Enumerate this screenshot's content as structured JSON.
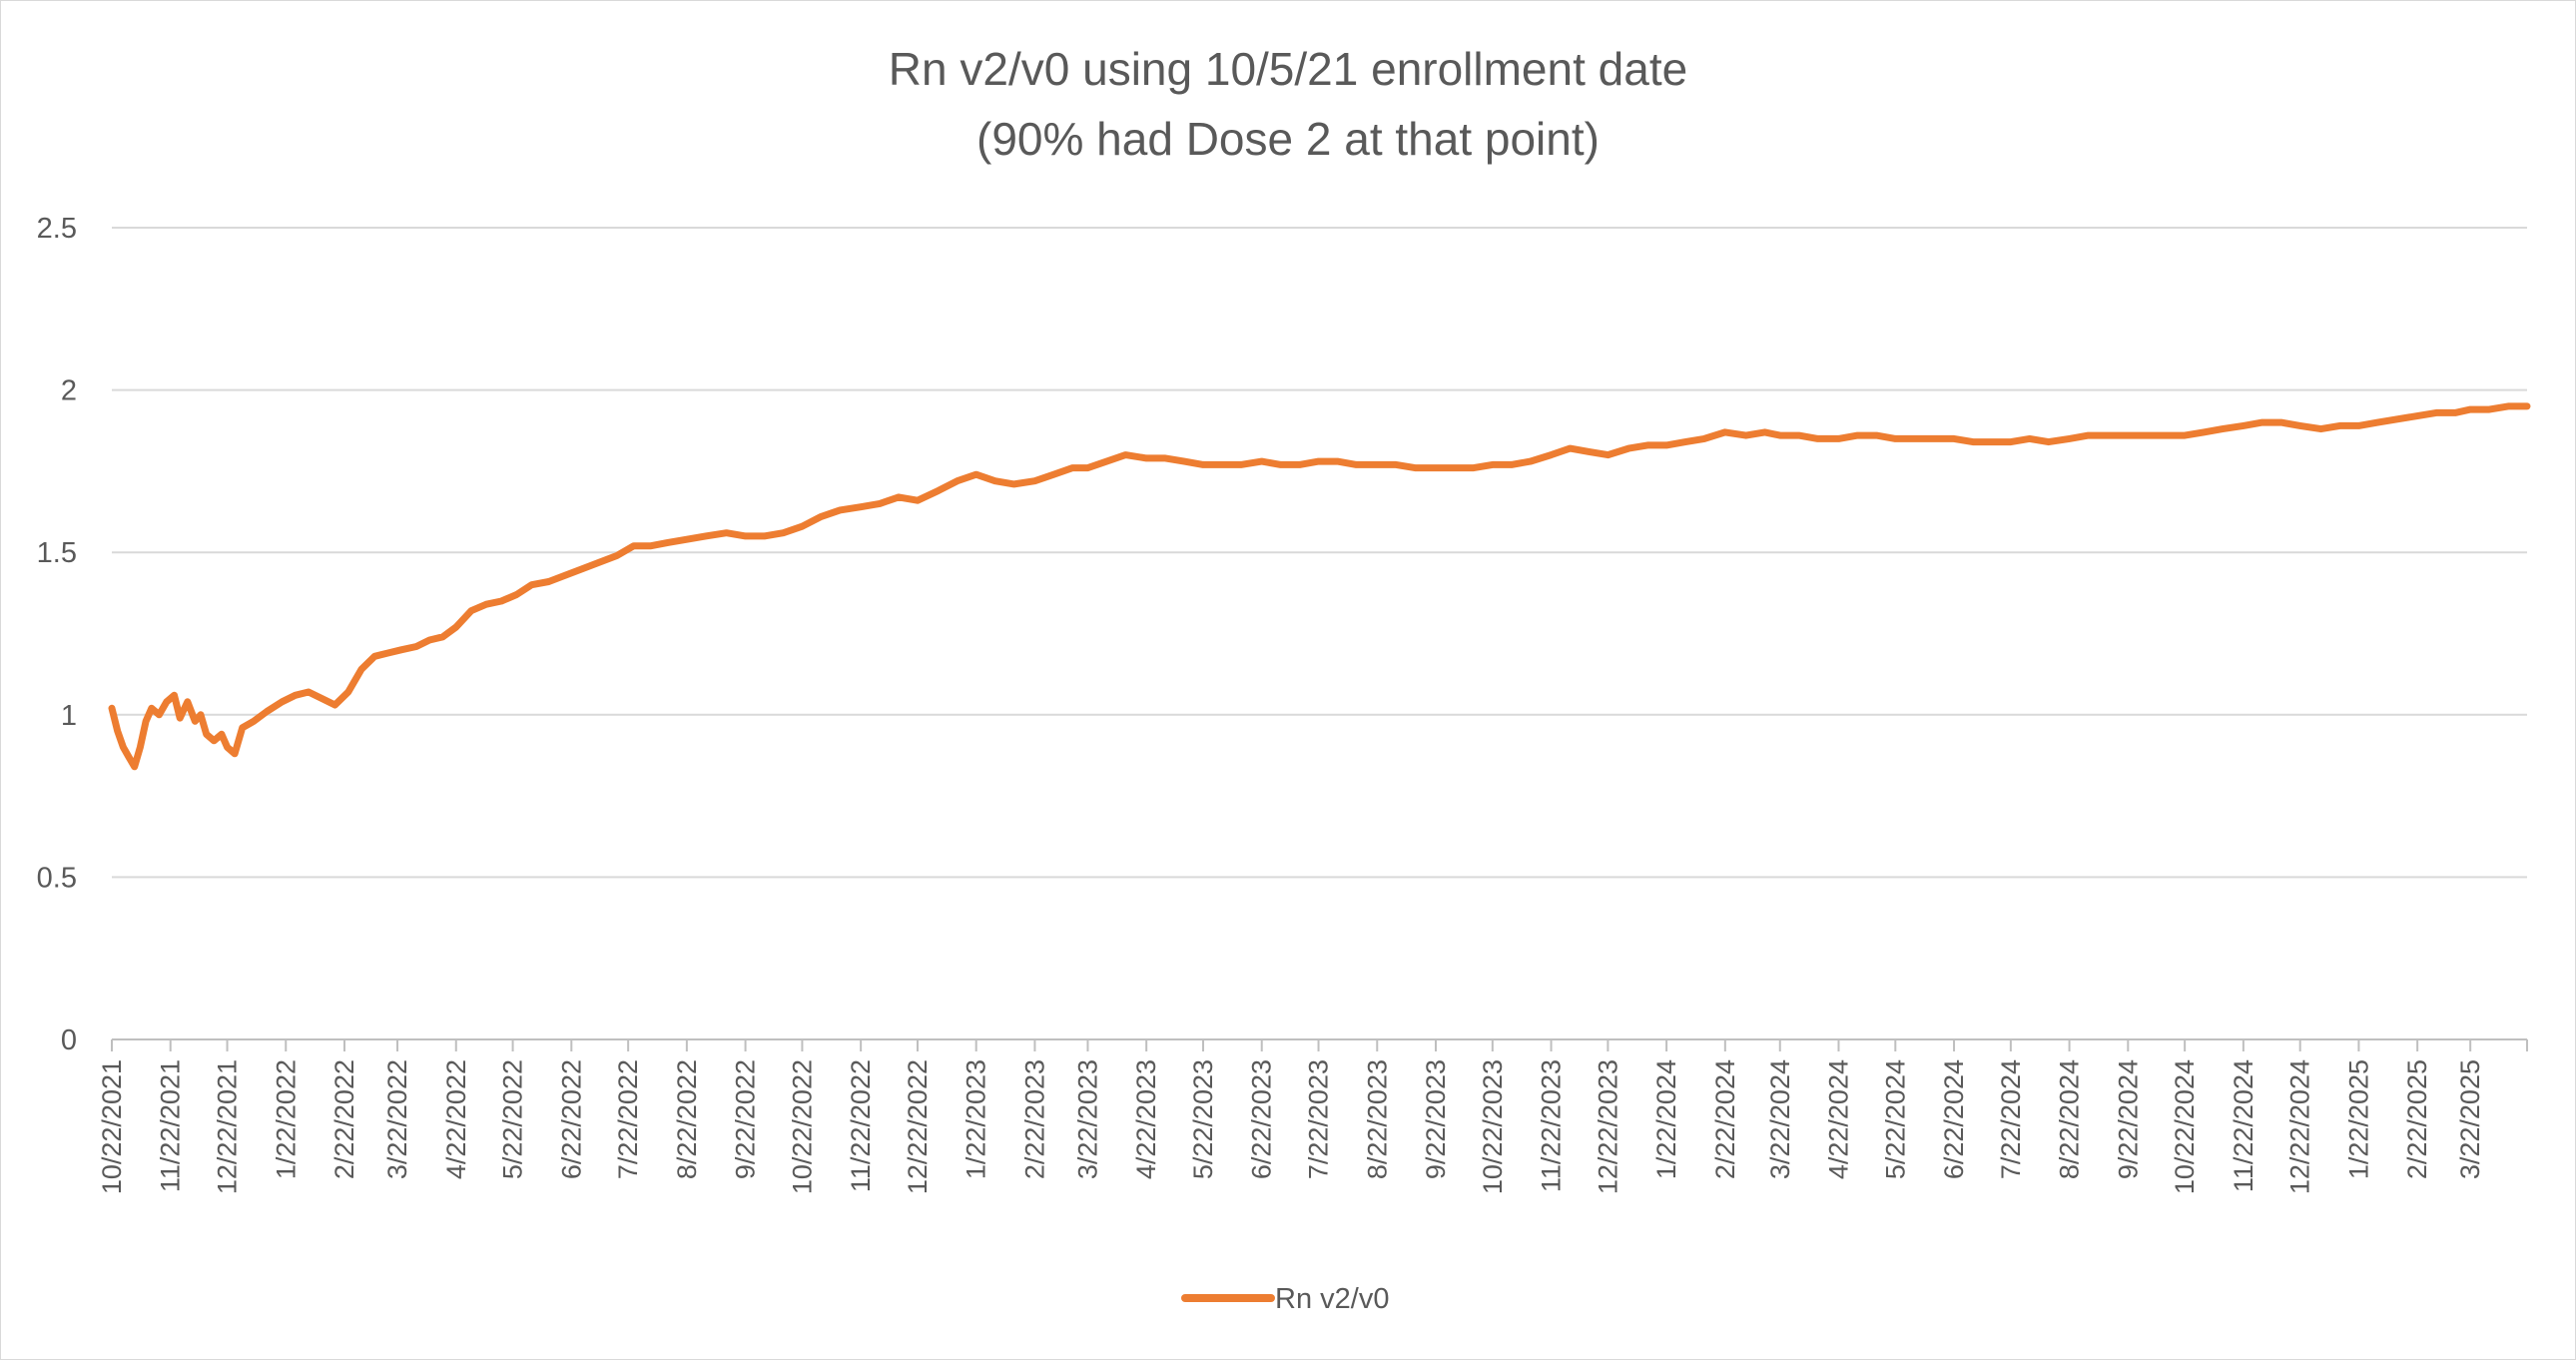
{
  "chart_data": {
    "type": "line",
    "title_lines": [
      "Rn v2/v0 using 10/5/21 enrollment date",
      "(90% had Dose 2 at that point)"
    ],
    "xlabel": "",
    "ylabel": "",
    "ylim": [
      0,
      2.5
    ],
    "yticks": [
      "0",
      "0.5",
      "1",
      "1.5",
      "2",
      "2.5"
    ],
    "x_start": "2021-10-22",
    "x_end": "2025-04-21",
    "xtick_labels": [
      "10/22/2021",
      "11/22/2021",
      "12/22/2021",
      "1/22/2022",
      "2/22/2022",
      "3/22/2022",
      "4/22/2022",
      "5/22/2022",
      "6/22/2022",
      "7/22/2022",
      "8/22/2022",
      "9/22/2022",
      "10/22/2022",
      "11/22/2022",
      "12/22/2022",
      "1/22/2023",
      "2/22/2023",
      "3/22/2023",
      "4/22/2023",
      "5/22/2023",
      "6/22/2023",
      "7/22/2023",
      "8/22/2023",
      "9/22/2023",
      "10/22/2023",
      "11/22/2023",
      "12/22/2023",
      "1/22/2024",
      "2/22/2024",
      "3/22/2024",
      "4/22/2024",
      "5/22/2024",
      "6/22/2024",
      "7/22/2024",
      "8/22/2024",
      "9/22/2024",
      "10/22/2024",
      "11/22/2024",
      "12/22/2024",
      "1/22/2025",
      "2/22/2025",
      "3/22/2025"
    ],
    "grid": true,
    "legend_position": "bottom",
    "series": [
      {
        "name": "Rn v2/v0",
        "color": "#ED7D31",
        "points": [
          [
            "2021-10-22",
            1.02
          ],
          [
            "2021-10-25",
            0.95
          ],
          [
            "2021-10-28",
            0.9
          ],
          [
            "2021-10-31",
            0.87
          ],
          [
            "2021-11-03",
            0.84
          ],
          [
            "2021-11-06",
            0.9
          ],
          [
            "2021-11-09",
            0.98
          ],
          [
            "2021-11-12",
            1.02
          ],
          [
            "2021-11-16",
            1.0
          ],
          [
            "2021-11-20",
            1.04
          ],
          [
            "2021-11-24",
            1.06
          ],
          [
            "2021-11-27",
            0.99
          ],
          [
            "2021-12-01",
            1.04
          ],
          [
            "2021-12-05",
            0.98
          ],
          [
            "2021-12-08",
            1.0
          ],
          [
            "2021-12-11",
            0.94
          ],
          [
            "2021-12-15",
            0.92
          ],
          [
            "2021-12-19",
            0.94
          ],
          [
            "2021-12-22",
            0.9
          ],
          [
            "2021-12-26",
            0.88
          ],
          [
            "2021-12-30",
            0.96
          ],
          [
            "2022-01-05",
            0.98
          ],
          [
            "2022-01-12",
            1.01
          ],
          [
            "2022-01-20",
            1.04
          ],
          [
            "2022-01-27",
            1.06
          ],
          [
            "2022-02-03",
            1.07
          ],
          [
            "2022-02-10",
            1.05
          ],
          [
            "2022-02-17",
            1.03
          ],
          [
            "2022-02-24",
            1.07
          ],
          [
            "2022-03-03",
            1.14
          ],
          [
            "2022-03-10",
            1.18
          ],
          [
            "2022-03-17",
            1.19
          ],
          [
            "2022-03-24",
            1.2
          ],
          [
            "2022-04-01",
            1.21
          ],
          [
            "2022-04-08",
            1.23
          ],
          [
            "2022-04-15",
            1.24
          ],
          [
            "2022-04-22",
            1.27
          ],
          [
            "2022-04-30",
            1.32
          ],
          [
            "2022-05-08",
            1.34
          ],
          [
            "2022-05-16",
            1.35
          ],
          [
            "2022-05-24",
            1.37
          ],
          [
            "2022-06-01",
            1.4
          ],
          [
            "2022-06-10",
            1.41
          ],
          [
            "2022-06-19",
            1.43
          ],
          [
            "2022-06-28",
            1.45
          ],
          [
            "2022-07-07",
            1.47
          ],
          [
            "2022-07-16",
            1.49
          ],
          [
            "2022-07-25",
            1.52
          ],
          [
            "2022-08-03",
            1.52
          ],
          [
            "2022-08-12",
            1.53
          ],
          [
            "2022-08-22",
            1.54
          ],
          [
            "2022-09-01",
            1.55
          ],
          [
            "2022-09-12",
            1.56
          ],
          [
            "2022-09-22",
            1.55
          ],
          [
            "2022-10-02",
            1.55
          ],
          [
            "2022-10-12",
            1.56
          ],
          [
            "2022-10-22",
            1.58
          ],
          [
            "2022-11-01",
            1.61
          ],
          [
            "2022-11-11",
            1.63
          ],
          [
            "2022-11-22",
            1.64
          ],
          [
            "2022-12-02",
            1.65
          ],
          [
            "2022-12-12",
            1.67
          ],
          [
            "2022-12-22",
            1.66
          ],
          [
            "2023-01-02",
            1.69
          ],
          [
            "2023-01-12",
            1.72
          ],
          [
            "2023-01-22",
            1.74
          ],
          [
            "2023-02-01",
            1.72
          ],
          [
            "2023-02-11",
            1.71
          ],
          [
            "2023-02-22",
            1.72
          ],
          [
            "2023-03-04",
            1.74
          ],
          [
            "2023-03-14",
            1.76
          ],
          [
            "2023-03-22",
            1.76
          ],
          [
            "2023-04-01",
            1.78
          ],
          [
            "2023-04-11",
            1.8
          ],
          [
            "2023-04-22",
            1.79
          ],
          [
            "2023-05-02",
            1.79
          ],
          [
            "2023-05-12",
            1.78
          ],
          [
            "2023-05-22",
            1.77
          ],
          [
            "2023-06-01",
            1.77
          ],
          [
            "2023-06-11",
            1.77
          ],
          [
            "2023-06-22",
            1.78
          ],
          [
            "2023-07-02",
            1.77
          ],
          [
            "2023-07-12",
            1.77
          ],
          [
            "2023-07-22",
            1.78
          ],
          [
            "2023-08-01",
            1.78
          ],
          [
            "2023-08-11",
            1.77
          ],
          [
            "2023-08-22",
            1.77
          ],
          [
            "2023-09-01",
            1.77
          ],
          [
            "2023-09-11",
            1.76
          ],
          [
            "2023-09-22",
            1.76
          ],
          [
            "2023-10-02",
            1.76
          ],
          [
            "2023-10-12",
            1.76
          ],
          [
            "2023-10-22",
            1.77
          ],
          [
            "2023-11-01",
            1.77
          ],
          [
            "2023-11-11",
            1.78
          ],
          [
            "2023-11-22",
            1.8
          ],
          [
            "2023-12-02",
            1.82
          ],
          [
            "2023-12-12",
            1.81
          ],
          [
            "2023-12-22",
            1.8
          ],
          [
            "2024-01-02",
            1.82
          ],
          [
            "2024-01-12",
            1.83
          ],
          [
            "2024-01-22",
            1.83
          ],
          [
            "2024-02-01",
            1.84
          ],
          [
            "2024-02-11",
            1.85
          ],
          [
            "2024-02-22",
            1.87
          ],
          [
            "2024-03-04",
            1.86
          ],
          [
            "2024-03-14",
            1.87
          ],
          [
            "2024-03-22",
            1.86
          ],
          [
            "2024-04-01",
            1.86
          ],
          [
            "2024-04-11",
            1.85
          ],
          [
            "2024-04-22",
            1.85
          ],
          [
            "2024-05-02",
            1.86
          ],
          [
            "2024-05-12",
            1.86
          ],
          [
            "2024-05-22",
            1.85
          ],
          [
            "2024-06-01",
            1.85
          ],
          [
            "2024-06-11",
            1.85
          ],
          [
            "2024-06-22",
            1.85
          ],
          [
            "2024-07-02",
            1.84
          ],
          [
            "2024-07-12",
            1.84
          ],
          [
            "2024-07-22",
            1.84
          ],
          [
            "2024-08-01",
            1.85
          ],
          [
            "2024-08-11",
            1.84
          ],
          [
            "2024-08-22",
            1.85
          ],
          [
            "2024-09-01",
            1.86
          ],
          [
            "2024-09-11",
            1.86
          ],
          [
            "2024-09-22",
            1.86
          ],
          [
            "2024-10-02",
            1.86
          ],
          [
            "2024-10-12",
            1.86
          ],
          [
            "2024-10-22",
            1.86
          ],
          [
            "2024-11-01",
            1.87
          ],
          [
            "2024-11-11",
            1.88
          ],
          [
            "2024-11-22",
            1.89
          ],
          [
            "2024-12-02",
            1.9
          ],
          [
            "2024-12-12",
            1.9
          ],
          [
            "2024-12-22",
            1.89
          ],
          [
            "2025-01-02",
            1.88
          ],
          [
            "2025-01-12",
            1.89
          ],
          [
            "2025-01-22",
            1.89
          ],
          [
            "2025-02-01",
            1.9
          ],
          [
            "2025-02-11",
            1.91
          ],
          [
            "2025-02-22",
            1.92
          ],
          [
            "2025-03-04",
            1.93
          ],
          [
            "2025-03-14",
            1.93
          ],
          [
            "2025-03-22",
            1.94
          ],
          [
            "2025-04-01",
            1.94
          ],
          [
            "2025-04-11",
            1.95
          ],
          [
            "2025-04-21",
            1.95
          ]
        ]
      }
    ]
  }
}
